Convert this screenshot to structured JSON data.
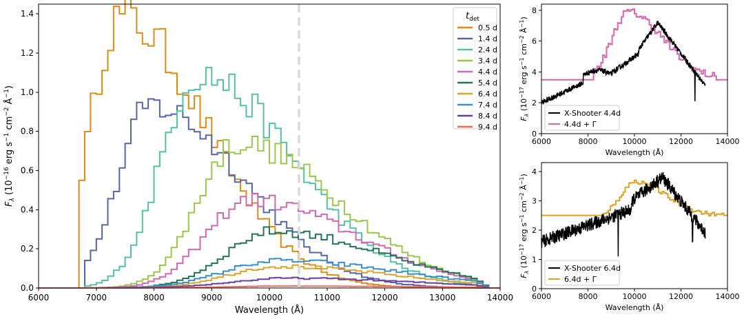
{
  "chart_data": [
    {
      "type": "line",
      "name": "main",
      "title": "",
      "xlabel": "Wavelength (Å)",
      "ylabel": "F_λ (10⁻¹⁶ erg s⁻¹ cm⁻² Å⁻¹)",
      "ylabel_parts": {
        "base": "F",
        "sub": "λ",
        "rest1": " (10",
        "sup1": "−16",
        "rest2": " erg s",
        "sup2": "−1",
        "rest3": " cm",
        "sup3": "−2",
        "rest4": " Å",
        "sup4": "−1",
        "rest5": ")"
      },
      "xlim": [
        6000,
        14000
      ],
      "ylim": [
        0,
        1.45
      ],
      "xticks": [
        6000,
        7000,
        8000,
        9000,
        10000,
        11000,
        12000,
        13000,
        14000
      ],
      "yticks": [
        0.0,
        0.2,
        0.4,
        0.6,
        0.8,
        1.0,
        1.2,
        1.4
      ],
      "vline": {
        "x": 10500,
        "color": "#d9d9d9",
        "style": "dashed"
      },
      "legend": {
        "title": "t",
        "title_sub": "det",
        "location": "top-right"
      },
      "series": [
        {
          "name": "0.5 d",
          "color": "#e08a12",
          "peak_x": 7350,
          "peak_y": 1.38,
          "tail": 0.08
        },
        {
          "name": "1.4 d",
          "color": "#5664ac",
          "peak_x": 7900,
          "peak_y": 0.93,
          "tail": 0.05
        },
        {
          "name": "2.4 d",
          "color": "#53c2a0",
          "peak_x": 8700,
          "peak_y": 1.09,
          "tail": 0.05
        },
        {
          "name": "3.4 d",
          "color": "#99c94a",
          "peak_x": 9400,
          "peak_y": 0.74,
          "tail": 0.05
        },
        {
          "name": "4.4 d",
          "color": "#d466b4",
          "peak_x": 9600,
          "peak_y": 0.45,
          "tail": 0.05
        },
        {
          "name": "5.4 d",
          "color": "#21735a",
          "peak_x": 10000,
          "peak_y": 0.29,
          "tail": 0.03
        },
        {
          "name": "6.4 d",
          "color": "#dca52a",
          "peak_x": 10100,
          "peak_y": 0.11,
          "tail": 0.02
        },
        {
          "name": "7.4 d",
          "color": "#3a8fcf",
          "peak_x": 10100,
          "peak_y": 0.14,
          "tail": 0.02
        },
        {
          "name": "8.4 d",
          "color": "#6a3fa0",
          "peak_x": 10300,
          "peak_y": 0.05,
          "tail": 0.01
        },
        {
          "name": "9.4 d",
          "color": "#f06b5b",
          "peak_x": 10300,
          "peak_y": 0.01,
          "tail": 0.005
        }
      ]
    },
    {
      "type": "line",
      "name": "top-right",
      "xlabel": "Wavelength (Å)",
      "ylabel_parts": {
        "base": "F",
        "sub": "λ",
        "rest1": " (10",
        "sup1": "−17",
        "rest2": " erg s",
        "sup2": "−1",
        "rest3": " cm",
        "sup3": "−2",
        "rest4": " Å",
        "sup4": "−1",
        "rest5": ")"
      },
      "xlim": [
        6000,
        14000
      ],
      "ylim": [
        0,
        8.4
      ],
      "xticks": [
        6000,
        8000,
        10000,
        12000,
        14000
      ],
      "yticks": [
        0,
        2,
        4,
        6,
        8
      ],
      "legend": {
        "location": "lower-left"
      },
      "series": [
        {
          "name": "X-Shooter 4.4d",
          "color": "#000000"
        },
        {
          "name": "4.4d + Γ",
          "color": "#d466b4"
        }
      ]
    },
    {
      "type": "line",
      "name": "bottom-right",
      "xlabel": "Wavelength (Å)",
      "ylabel_parts": {
        "base": "F",
        "sub": "λ",
        "rest1": " (10",
        "sup1": "−17",
        "rest2": " erg s",
        "sup2": "−1",
        "rest3": " cm",
        "sup3": "−2",
        "rest4": " Å",
        "sup4": "−1",
        "rest5": ")"
      },
      "xlim": [
        6000,
        14000
      ],
      "ylim": [
        0,
        4.3
      ],
      "xticks": [
        6000,
        8000,
        10000,
        12000,
        14000
      ],
      "yticks": [
        0,
        1,
        2,
        3,
        4
      ],
      "legend": {
        "location": "lower-left"
      },
      "series": [
        {
          "name": "X-Shooter 6.4d",
          "color": "#000000"
        },
        {
          "name": "6.4d + Γ",
          "color": "#dca52a"
        }
      ]
    }
  ]
}
